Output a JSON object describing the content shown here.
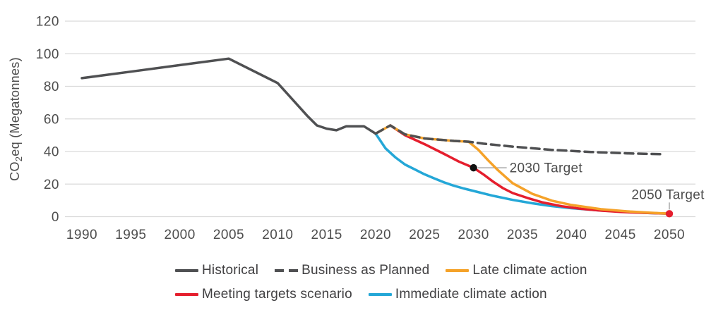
{
  "chart_data": {
    "type": "line",
    "title": "",
    "xlabel": "",
    "ylabel": "CO2eq (Megatonnes)",
    "ylabel_rich": {
      "prefix": "CO",
      "sub": "2",
      "suffix": "eq (Megatonnes)"
    },
    "xlim": [
      1990,
      2050
    ],
    "ylim": [
      0,
      120
    ],
    "x_ticks": [
      1990,
      1995,
      2000,
      2005,
      2010,
      2015,
      2020,
      2025,
      2030,
      2035,
      2040,
      2045,
      2050
    ],
    "y_ticks": [
      0,
      20,
      40,
      60,
      80,
      100,
      120
    ],
    "grid": "horizontal",
    "legend_position": "bottom",
    "series": [
      {
        "name": "Historical",
        "color": "#4F5052",
        "style": "solid",
        "points": [
          [
            1990,
            85
          ],
          [
            1995,
            89
          ],
          [
            2000,
            93
          ],
          [
            2005,
            97
          ],
          [
            2010,
            82
          ],
          [
            2013,
            62
          ],
          [
            2014,
            56
          ],
          [
            2015,
            54
          ],
          [
            2016,
            53
          ],
          [
            2017,
            55.5
          ],
          [
            2018.8,
            55.5
          ],
          [
            2020,
            51
          ]
        ]
      },
      {
        "name": "Business as Planned",
        "color": "#4F5052",
        "style": "dashed",
        "points": [
          [
            2020,
            51
          ],
          [
            2021.5,
            56
          ],
          [
            2023,
            50.5
          ],
          [
            2025,
            48
          ],
          [
            2028,
            46.5
          ],
          [
            2029.5,
            46
          ],
          [
            2031,
            44.8
          ],
          [
            2034,
            43
          ],
          [
            2038,
            41
          ],
          [
            2042,
            39.7
          ],
          [
            2046,
            38.8
          ],
          [
            2049.5,
            38.3
          ]
        ]
      },
      {
        "name": "Late climate action",
        "color": "#F5A229",
        "style": "solid",
        "points": [
          [
            2020,
            51
          ],
          [
            2021.5,
            56
          ],
          [
            2023,
            50.5
          ],
          [
            2025,
            48
          ],
          [
            2028,
            46.5
          ],
          [
            2029.5,
            46
          ],
          [
            2030.5,
            41
          ],
          [
            2031.5,
            34.5
          ],
          [
            2032.5,
            28.5
          ],
          [
            2034,
            20.5
          ],
          [
            2036,
            14
          ],
          [
            2038,
            9.8
          ],
          [
            2040,
            7.2
          ],
          [
            2043,
            4.6
          ],
          [
            2046,
            3.1
          ],
          [
            2048,
            2.4
          ],
          [
            2050,
            1.8
          ]
        ]
      },
      {
        "name": "Meeting targets scenario",
        "color": "#E51E2D",
        "style": "solid",
        "points": [
          [
            2021.5,
            56
          ],
          [
            2023,
            50
          ],
          [
            2025,
            44.5
          ],
          [
            2027,
            38.5
          ],
          [
            2028.5,
            33.8
          ],
          [
            2030,
            30
          ],
          [
            2031,
            26
          ],
          [
            2032,
            21.5
          ],
          [
            2033,
            17.5
          ],
          [
            2034,
            14.5
          ],
          [
            2035.5,
            11.5
          ],
          [
            2037,
            8.8
          ],
          [
            2039,
            6.4
          ],
          [
            2041,
            4.8
          ],
          [
            2043,
            3.7
          ],
          [
            2045,
            2.9
          ],
          [
            2047,
            2.4
          ],
          [
            2050,
            1.8
          ]
        ]
      },
      {
        "name": "Immediate climate action",
        "color": "#24A7D7",
        "style": "solid",
        "points": [
          [
            2020,
            51
          ],
          [
            2021,
            42
          ],
          [
            2022,
            36.5
          ],
          [
            2023,
            32
          ],
          [
            2024,
            29
          ],
          [
            2025,
            26
          ],
          [
            2026,
            23.5
          ],
          [
            2027,
            21
          ],
          [
            2028,
            19
          ],
          [
            2029,
            17.3
          ],
          [
            2030,
            15.8
          ],
          [
            2032,
            12.8
          ],
          [
            2034,
            10.3
          ],
          [
            2036,
            8.2
          ],
          [
            2038,
            6.5
          ],
          [
            2040,
            5.2
          ],
          [
            2043,
            3.8
          ],
          [
            2046,
            2.8
          ],
          [
            2048,
            2.2
          ],
          [
            2050,
            1.8
          ]
        ]
      }
    ],
    "annotations": [
      {
        "label": "2030 Target",
        "year": 2030,
        "value": 30,
        "dot_color": "#111111",
        "leader": "horizontal"
      },
      {
        "label": "2050 Target",
        "year": 2050,
        "value": 1.8,
        "dot_color": "#E51E2D",
        "leader": "vertical"
      }
    ]
  },
  "colors": {
    "text": "#4D4D4D",
    "grid": "#D9D9D9",
    "leader": "#A8A8A8"
  }
}
